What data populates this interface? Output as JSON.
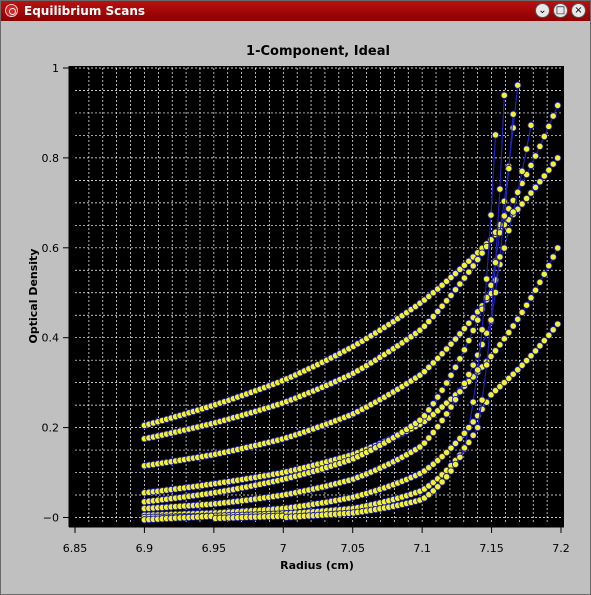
{
  "window": {
    "title": "Equilibrium Scans",
    "buttons": {
      "minimize": "⌄",
      "maximize": "□",
      "close": "×"
    }
  },
  "colors": {
    "background": "#000000",
    "grid": "#ffffff",
    "marker_fill": "#f2f230",
    "marker_edge": "#1a1aa0",
    "line": "#2020c0"
  },
  "chart_data": {
    "type": "scatter",
    "title": "1-Component, Ideal",
    "xlabel": "Radius (cm)",
    "ylabel": "Optical Density",
    "xlim": [
      6.85,
      7.2
    ],
    "ylim": [
      -0.01,
      1.0
    ],
    "x_ticks": [
      "6.85",
      "6.9",
      "6.95",
      "7",
      "7.05",
      "7.1",
      "7.15",
      "7.2"
    ],
    "y_ticks": [
      "−0",
      "0.2",
      "0.4",
      "0.6",
      "0.8",
      "1"
    ],
    "grid": true,
    "x_range_of_data": [
      6.9,
      7.2
    ],
    "series": [
      {
        "points": [
          [
            6.9,
            0.205
          ],
          [
            6.95,
            0.25
          ],
          [
            7.0,
            0.305
          ],
          [
            7.05,
            0.38
          ],
          [
            7.1,
            0.48
          ],
          [
            7.15,
            0.62
          ],
          [
            7.2,
            0.81
          ]
        ]
      },
      {
        "points": [
          [
            6.9,
            0.175
          ],
          [
            6.95,
            0.21
          ],
          [
            7.0,
            0.255
          ],
          [
            7.05,
            0.32
          ],
          [
            7.1,
            0.42
          ],
          [
            7.15,
            0.62
          ],
          [
            7.2,
            0.935
          ]
        ]
      },
      {
        "points": [
          [
            6.9,
            0.115
          ],
          [
            6.95,
            0.14
          ],
          [
            7.0,
            0.175
          ],
          [
            7.05,
            0.23
          ],
          [
            7.1,
            0.32
          ],
          [
            7.15,
            0.5
          ],
          [
            7.18,
            0.9
          ]
        ]
      },
      {
        "points": [
          [
            6.9,
            0.055
          ],
          [
            6.95,
            0.075
          ],
          [
            7.0,
            0.1
          ],
          [
            7.05,
            0.14
          ],
          [
            7.1,
            0.21
          ],
          [
            7.15,
            0.36
          ],
          [
            7.2,
            0.615
          ]
        ]
      },
      {
        "points": [
          [
            6.9,
            0.035
          ],
          [
            6.95,
            0.055
          ],
          [
            7.0,
            0.085
          ],
          [
            7.05,
            0.13
          ],
          [
            7.1,
            0.22
          ],
          [
            7.15,
            0.52
          ],
          [
            7.17,
            1.0
          ]
        ]
      },
      {
        "points": [
          [
            6.9,
            0.02
          ],
          [
            6.95,
            0.03
          ],
          [
            7.0,
            0.05
          ],
          [
            7.05,
            0.085
          ],
          [
            7.1,
            0.16
          ],
          [
            7.15,
            0.44
          ],
          [
            7.168,
            1.0
          ]
        ]
      },
      {
        "points": [
          [
            6.9,
            0.005
          ],
          [
            6.95,
            0.01
          ],
          [
            7.0,
            0.02
          ],
          [
            7.05,
            0.045
          ],
          [
            7.1,
            0.1
          ],
          [
            7.15,
            0.275
          ],
          [
            7.2,
            0.44
          ]
        ]
      },
      {
        "points": [
          [
            6.9,
            0.0
          ],
          [
            6.95,
            0.003
          ],
          [
            7.0,
            0.008
          ],
          [
            7.05,
            0.02
          ],
          [
            7.1,
            0.06
          ],
          [
            7.14,
            0.2
          ],
          [
            7.16,
            1.0
          ]
        ]
      },
      {
        "points": [
          [
            6.9,
            -0.005
          ],
          [
            6.95,
            -0.002
          ],
          [
            7.0,
            0.0
          ],
          [
            7.05,
            0.01
          ],
          [
            7.1,
            0.04
          ],
          [
            7.13,
            0.15
          ],
          [
            7.155,
            1.0
          ]
        ]
      }
    ]
  }
}
